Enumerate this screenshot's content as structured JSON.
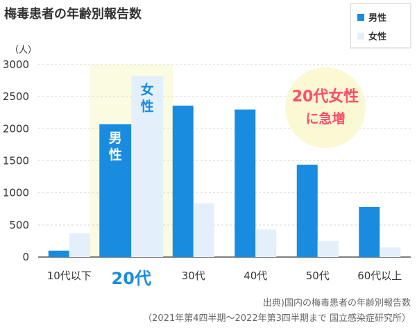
{
  "chart_data": {
    "type": "bar",
    "title": "梅毒患者の年齢別報告数",
    "ylabel": "（人）",
    "ylim": [
      0,
      3000
    ],
    "yticks": [
      "0",
      "500",
      "1000",
      "1500",
      "2000",
      "2500",
      "3000"
    ],
    "categories": [
      "10代以下",
      "20代",
      "30代",
      "40代",
      "50代",
      "60代以上"
    ],
    "highlight_index": 1,
    "series": [
      {
        "name": "男性",
        "color": "#1a8ce0",
        "values": [
          100,
          2070,
          2360,
          2300,
          1440,
          780
        ]
      },
      {
        "name": "女性",
        "color": "#e3f0fb",
        "values": [
          370,
          2820,
          840,
          430,
          250,
          150
        ]
      }
    ],
    "bar_labels": {
      "male": "男性",
      "female": "女性"
    },
    "annotation": {
      "line1": "20代女性",
      "line2": "に急増"
    },
    "grid": true,
    "legend_position": "top-right"
  },
  "source": {
    "line1": "出典)国内の梅毒患者の年齢別報告数",
    "line2": "（2021年第4四半期～2022年第3四半期まで 国立感染症研究所）"
  },
  "colors": {
    "male": "#1a8ce0",
    "female": "#e3f0fb",
    "highlight_band": "#fbfbe1",
    "annotation_circle": "#fbf8d4",
    "annotation_text": "#ff4d6a",
    "grid": "#d4d4d4"
  }
}
